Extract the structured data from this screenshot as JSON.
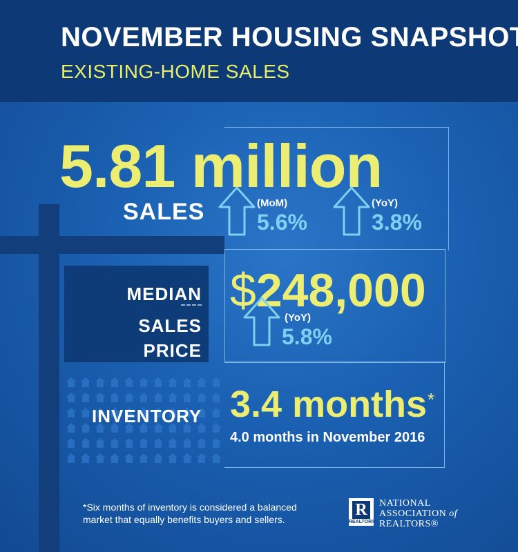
{
  "header": {
    "title": "NOVEMBER HOUSING SNAPSHOT",
    "subtitle": "EXISTING-HOME SALES"
  },
  "sales": {
    "value": "5.81 million",
    "label": "SALES",
    "mom": {
      "tag": "(MoM)",
      "value": "5.6%"
    },
    "yoy": {
      "tag": "(YoY)",
      "value": "3.8%"
    }
  },
  "median_price": {
    "label_line1": "MEDIAN",
    "label_line2": "SALES PRICE",
    "dollar": "$",
    "value": "248,000",
    "yoy": {
      "tag": "(YoY)",
      "value": "5.8%"
    }
  },
  "inventory": {
    "label": "INVENTORY",
    "value": "3.4 months",
    "star": "*",
    "comparison": "4.0 months in November 2016"
  },
  "footnote": {
    "line1": "*Six months of inventory is considered a balanced",
    "line2": "market that equally benefits buyers and sellers."
  },
  "logo": {
    "mark": "R",
    "mark_caption": "REALTOR®",
    "line1": "NATIONAL",
    "line2a": "ASSOCIATION",
    "line2b": "of",
    "line3": "REALTORS®"
  },
  "colors": {
    "background": "#1a5fb0",
    "header": "#0d3a77",
    "accent_yellow": "#ecee74",
    "accent_cyan": "#7fd0f2"
  },
  "icons": {
    "up_arrow": "up-arrow-icon",
    "house": "house-icon"
  }
}
